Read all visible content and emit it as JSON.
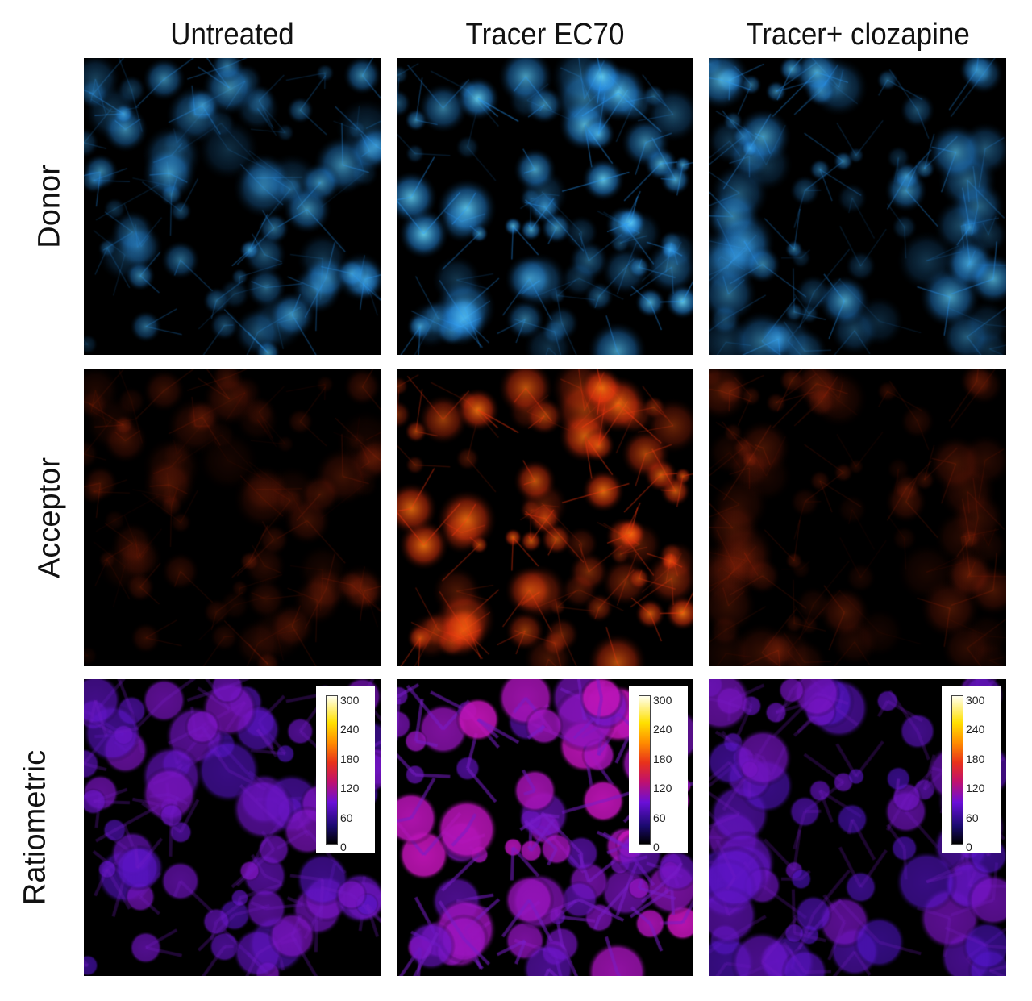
{
  "columns": [
    "Untreated",
    "Tracer EC70",
    "Tracer+ clozapine"
  ],
  "rows": [
    "Donor",
    "Acceptor",
    "Ratiometric"
  ],
  "colorbar": {
    "ticks": [
      "300",
      "240",
      "180",
      "120",
      "60",
      "0"
    ],
    "colormap": "fire"
  },
  "channel_colors": {
    "Donor": "#2a9cff",
    "Acceptor": "#ff3a10",
    "Ratiometric": "#7a30e0"
  },
  "panel_intensity": {
    "Donor": [
      0.7,
      0.9,
      0.75
    ],
    "Acceptor": [
      0.25,
      0.9,
      0.28
    ],
    "Ratiometric": [
      0.45,
      0.9,
      0.4
    ]
  }
}
